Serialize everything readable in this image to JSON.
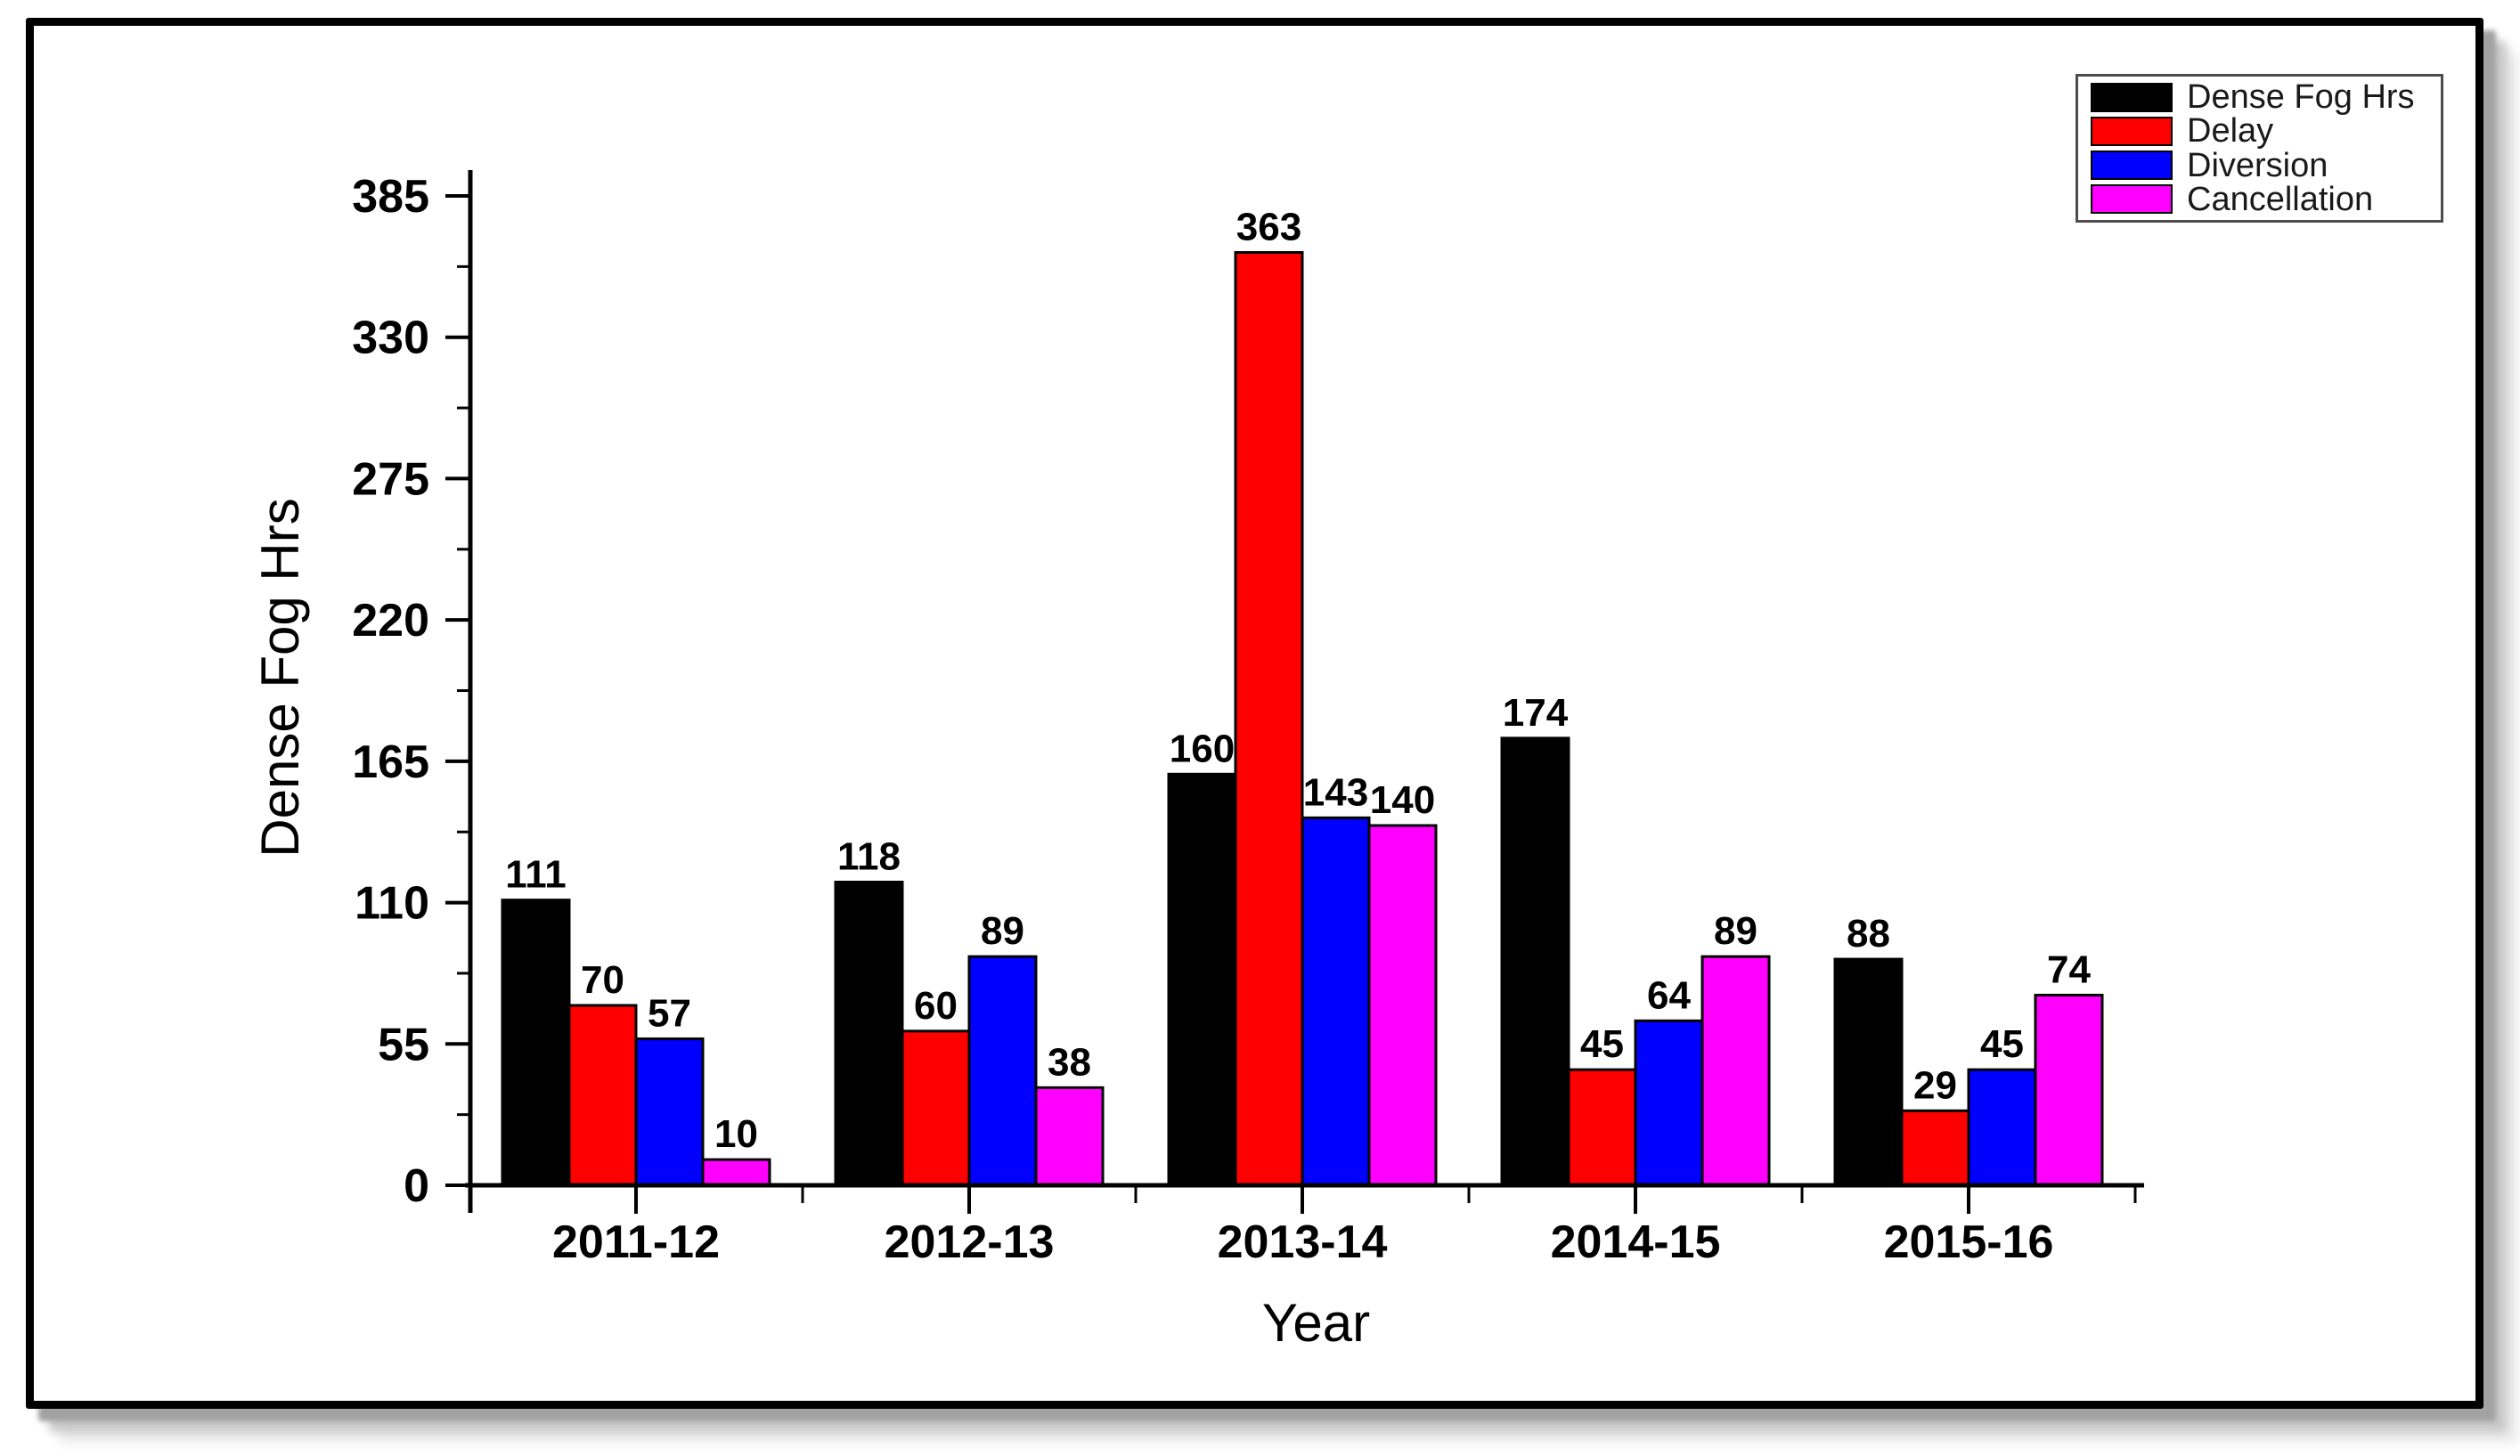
{
  "page": {
    "background": "#ffffff"
  },
  "frame": {
    "border_color": "#000000",
    "background": "#ffffff",
    "shadow_color": "#a2a2a2"
  },
  "chart_data": {
    "type": "bar",
    "title": "",
    "categories": [
      "2011-12",
      "2012-13",
      "2013-14",
      "2014-15",
      "2015-16"
    ],
    "series": [
      {
        "name": "Dense Fog Hrs",
        "color": "#000000",
        "values": [
          111,
          118,
          160,
          174,
          88
        ]
      },
      {
        "name": "Delay",
        "color": "#ff0000",
        "values": [
          70,
          60,
          363,
          45,
          29
        ]
      },
      {
        "name": "Diversion",
        "color": "#0000ff",
        "values": [
          57,
          89,
          143,
          64,
          45
        ]
      },
      {
        "name": "Cancellation",
        "color": "#ff00ff",
        "values": [
          10,
          38,
          140,
          89,
          74
        ]
      }
    ],
    "xlabel": "Year",
    "ylabel": "Dense Fog Hrs",
    "yticks": [
      0,
      55,
      110,
      165,
      220,
      275,
      330,
      385
    ],
    "ylim": [
      0,
      395
    ],
    "y_minor_step": 27.5,
    "grid": false,
    "bar_value_labels": true,
    "bar_outline_color": "#000000",
    "axis_color": "#000000",
    "tick_label_color": "#000000",
    "legend_position": "top-right"
  }
}
